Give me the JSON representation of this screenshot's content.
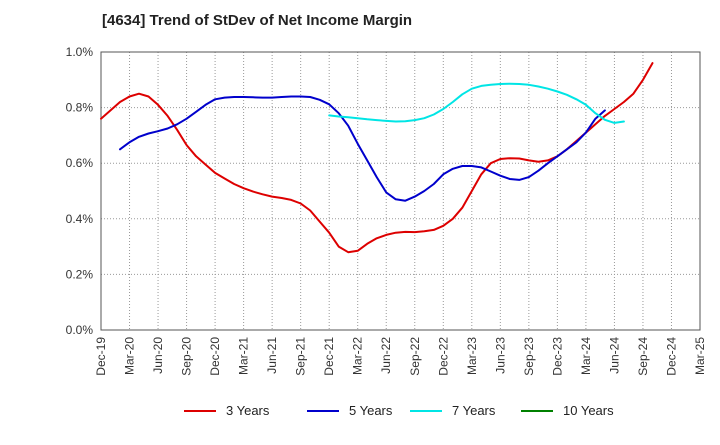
{
  "chart_data": {
    "type": "line",
    "title": "[4634]  Trend of StDev of Net Income Margin",
    "xlabel": "",
    "ylabel": "",
    "ylim": [
      0,
      1.0
    ],
    "y_ticks": [
      "0.0%",
      "0.2%",
      "0.4%",
      "0.6%",
      "0.8%",
      "1.0%"
    ],
    "y_tick_values": [
      0,
      0.2,
      0.4,
      0.6,
      0.8,
      1.0
    ],
    "x_ticks": [
      "Dec-19",
      "Mar-20",
      "Jun-20",
      "Sep-20",
      "Dec-20",
      "Mar-21",
      "Jun-21",
      "Sep-21",
      "Dec-21",
      "Mar-22",
      "Jun-22",
      "Sep-22",
      "Dec-22",
      "Mar-23",
      "Jun-23",
      "Sep-23",
      "Dec-23",
      "Mar-24",
      "Jun-24",
      "Sep-24",
      "Dec-24",
      "Mar-25"
    ],
    "grid": true,
    "grid_style": "dotted",
    "legend_position": "bottom",
    "series": [
      {
        "name": "3 Years",
        "color": "#dd0000",
        "x": [
          0,
          1,
          2,
          3,
          4,
          5,
          6,
          7,
          8,
          9,
          10,
          11,
          12,
          13,
          14,
          15,
          16,
          17,
          18,
          19,
          20,
          21,
          22,
          23,
          24,
          25,
          26,
          27,
          28,
          29,
          30,
          31,
          32,
          33,
          34,
          35,
          36,
          37,
          38,
          39,
          40,
          41,
          42,
          43,
          44,
          45,
          46,
          47,
          48,
          49,
          50,
          51,
          52,
          53,
          54,
          55,
          56,
          57,
          58,
          59,
          60
        ],
        "values": [
          0.76,
          0.79,
          0.82,
          0.84,
          0.85,
          0.84,
          0.81,
          0.77,
          0.72,
          0.665,
          0.625,
          0.595,
          0.565,
          0.545,
          0.525,
          0.51,
          0.498,
          0.488,
          0.48,
          0.475,
          0.468,
          0.455,
          0.43,
          0.39,
          0.35,
          0.3,
          0.28,
          0.285,
          0.31,
          0.33,
          0.342,
          0.35,
          0.353,
          0.352,
          0.355,
          0.36,
          0.375,
          0.4,
          0.44,
          0.5,
          0.56,
          0.6,
          0.615,
          0.618,
          0.617,
          0.61,
          0.605,
          0.61,
          0.625,
          0.65,
          0.68,
          0.71,
          0.74,
          0.77,
          0.795,
          0.82,
          0.85,
          0.9,
          0.96,
          null,
          null
        ]
      },
      {
        "name": "5 Years",
        "color": "#0000cc",
        "x": [
          0,
          1,
          2,
          3,
          4,
          5,
          6,
          7,
          8,
          9,
          10,
          11,
          12,
          13,
          14,
          15,
          16,
          17,
          18,
          19,
          20,
          21,
          22,
          23,
          24,
          25,
          26,
          27,
          28,
          29,
          30,
          31,
          32,
          33,
          34,
          35,
          36,
          37,
          38,
          39,
          40,
          41,
          42,
          43,
          44,
          45,
          46,
          47,
          48,
          49,
          50,
          51,
          52,
          53,
          54,
          55,
          56,
          57,
          58,
          59,
          60
        ],
        "values": [
          null,
          null,
          0.65,
          0.675,
          0.695,
          0.707,
          0.715,
          0.725,
          0.74,
          0.76,
          0.785,
          0.81,
          0.83,
          0.836,
          0.838,
          0.838,
          0.837,
          0.836,
          0.836,
          0.838,
          0.84,
          0.84,
          0.838,
          0.828,
          0.812,
          0.78,
          0.735,
          0.67,
          0.61,
          0.55,
          0.495,
          0.47,
          0.465,
          0.48,
          0.5,
          0.525,
          0.56,
          0.58,
          0.59,
          0.59,
          0.585,
          0.57,
          0.555,
          0.543,
          0.54,
          0.55,
          0.573,
          0.6,
          0.625,
          0.65,
          0.675,
          0.71,
          0.76,
          0.79,
          null,
          null,
          null,
          null,
          null,
          null,
          null
        ]
      },
      {
        "name": "7 Years",
        "color": "#00e5e5",
        "x": [
          0,
          1,
          2,
          3,
          4,
          5,
          6,
          7,
          8,
          9,
          10,
          11,
          12,
          13,
          14,
          15,
          16,
          17,
          18,
          19,
          20,
          21,
          22,
          23,
          24,
          25,
          26,
          27,
          28,
          29,
          30,
          31,
          32,
          33,
          34,
          35,
          36,
          37,
          38,
          39,
          40,
          41,
          42,
          43,
          44,
          45,
          46,
          47,
          48,
          49,
          50,
          51,
          52,
          53,
          54,
          55,
          56,
          57,
          58,
          59,
          60
        ],
        "values": [
          null,
          null,
          null,
          null,
          null,
          null,
          null,
          null,
          null,
          null,
          null,
          null,
          null,
          null,
          null,
          null,
          null,
          null,
          null,
          null,
          null,
          null,
          null,
          null,
          0.772,
          0.768,
          0.765,
          0.762,
          0.758,
          0.755,
          0.752,
          0.75,
          0.751,
          0.755,
          0.762,
          0.775,
          0.795,
          0.82,
          0.848,
          0.868,
          0.878,
          0.882,
          0.885,
          0.886,
          0.885,
          0.882,
          0.876,
          0.868,
          0.858,
          0.846,
          0.83,
          0.81,
          0.78,
          0.756,
          0.745,
          0.75,
          null,
          null,
          null,
          null,
          null
        ]
      },
      {
        "name": "10 Years",
        "color": "#008000",
        "x": [],
        "values": []
      }
    ]
  }
}
